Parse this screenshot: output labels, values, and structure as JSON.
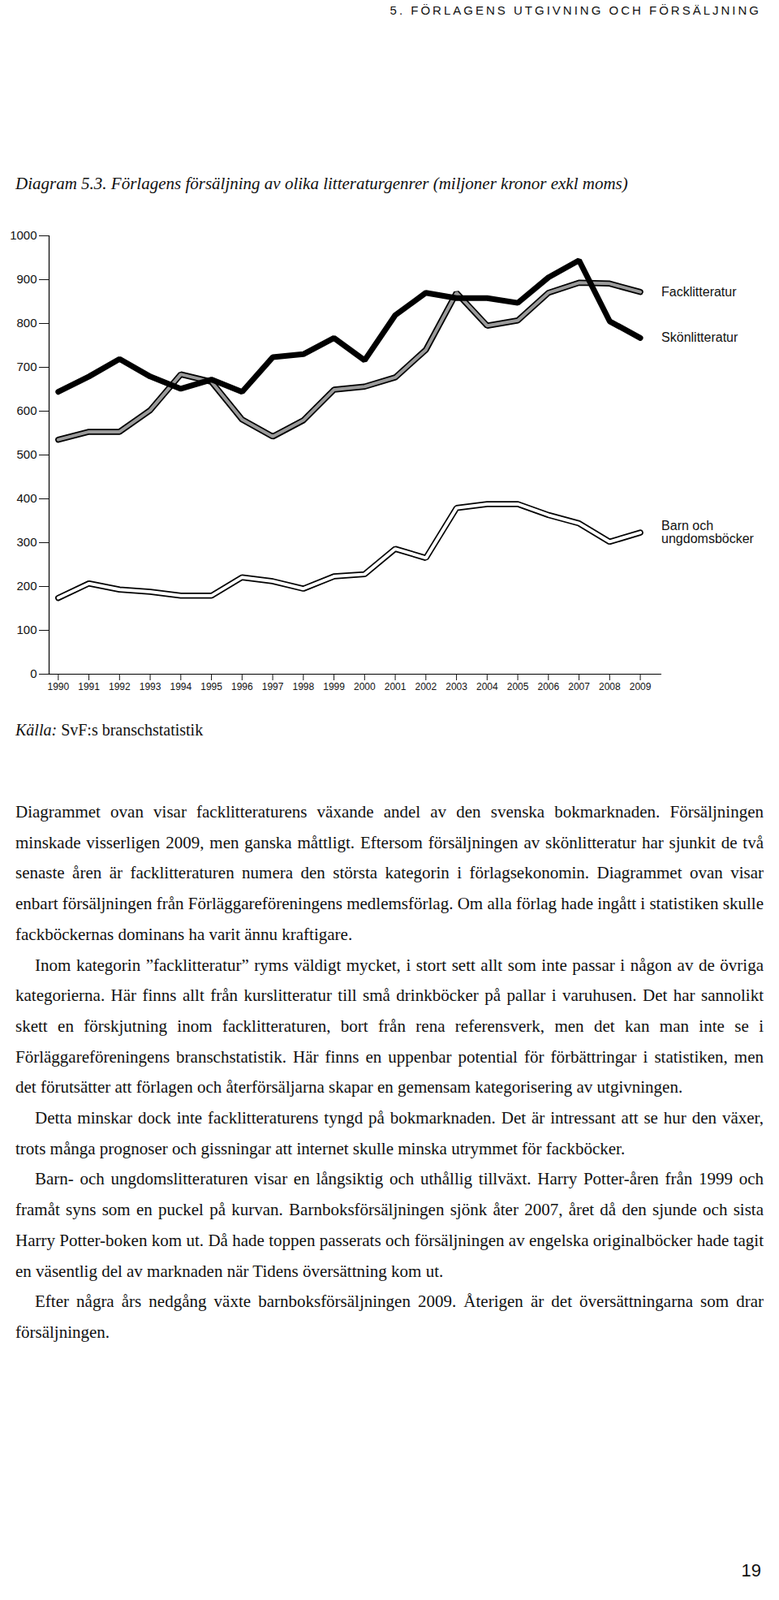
{
  "header": "5. FÖRLAGENS UTGIVNING OCH FÖRSÄLJNING",
  "chart_data": {
    "type": "line",
    "title": "Diagram 5.3. Förlagens försäljning av olika litteraturgenrer (miljoner kronor exkl moms)",
    "x": [
      1990,
      1991,
      1992,
      1993,
      1994,
      1995,
      1996,
      1997,
      1998,
      1999,
      2000,
      2001,
      2002,
      2003,
      2004,
      2005,
      2006,
      2007,
      2008,
      2009
    ],
    "series": [
      {
        "name": "Facklitteratur",
        "color": "#9a9a9a",
        "line_style": "outlined",
        "values": [
          535,
          553,
          553,
          602,
          684,
          667,
          581,
          542,
          579,
          649,
          656,
          677,
          740,
          870,
          795,
          807,
          870,
          893,
          891,
          872
        ]
      },
      {
        "name": "Skönlitteratur",
        "color": "#000000",
        "line_style": "solid",
        "values": [
          644,
          679,
          719,
          679,
          651,
          672,
          644,
          723,
          730,
          767,
          716,
          819,
          870,
          858,
          858,
          847,
          905,
          944,
          805,
          767
        ]
      },
      {
        "name": "Barn och ungdomsböcker",
        "color": "#ffffff",
        "line_style": "outlined",
        "values": [
          174,
          207,
          193,
          188,
          179,
          179,
          221,
          212,
          195,
          223,
          228,
          286,
          265,
          379,
          388,
          388,
          363,
          344,
          302,
          323
        ]
      }
    ],
    "xlim": [
      1989.7,
      2009.7
    ],
    "xticks": [
      1990,
      1991,
      1992,
      1993,
      1994,
      1995,
      1996,
      1997,
      1998,
      1999,
      2000,
      2001,
      2002,
      2003,
      2004,
      2005,
      2006,
      2007,
      2008,
      2009
    ],
    "ylim": [
      0,
      1000
    ],
    "yticks": [
      0,
      100,
      200,
      300,
      400,
      500,
      600,
      700,
      800,
      900,
      1000
    ],
    "grid": false
  },
  "source": {
    "label": "Källa:",
    "text": "SvF:s branschstatistik"
  },
  "paragraphs": [
    "Diagrammet ovan visar facklitteraturens växande andel av den svenska bokmarknaden. Försäljningen minskade visserligen 2009, men ganska måttligt. Eftersom försäljningen av skönlitteratur har sjunkit de två senaste åren är facklitteraturen numera den största kategorin i förlagsekonomin. Diagrammet ovan visar enbart försäljningen från Förläggareföreningens medlemsförlag. Om alla förlag hade ingått i statistiken skulle fackböckernas dominans ha varit ännu kraftigare.",
    "Inom kategorin ”facklitteratur” ryms väldigt mycket, i stort sett allt som inte passar i någon av de övriga kategorierna. Här finns allt från kurslitteratur till små drinkböcker på pallar i varuhusen. Det har sannolikt skett en förskjutning inom facklitteraturen, bort från rena referensverk, men det kan man inte se i Förläggareföreningens branschstatistik. Här finns en uppenbar potential för förbättringar i statistiken, men det förutsätter att förlagen och återförsäljarna skapar en gemensam kategorisering av utgivningen.",
    "Detta minskar dock inte facklitteraturens tyngd på bokmarknaden. Det är intressant att se hur den växer, trots många prognoser och gissningar att internet skulle minska utrymmet för fackböcker.",
    "Barn- och ungdomslitteraturen visar en långsiktig och uthållig tillväxt. Harry Potter-åren från 1999 och framåt syns som en puckel på kurvan. Barnboksförsäljningen sjönk åter 2007, året då den sjunde och sista Harry Potter-boken kom ut. Då hade toppen passerats och försäljningen av engelska originalböcker hade tagit en väsentlig del av marknaden när Tidens översättning kom ut.",
    "Efter några års nedgång växte barnboksförsäljningen 2009. Återigen är det översättningarna som drar försäljningen."
  ],
  "page_number": "19"
}
